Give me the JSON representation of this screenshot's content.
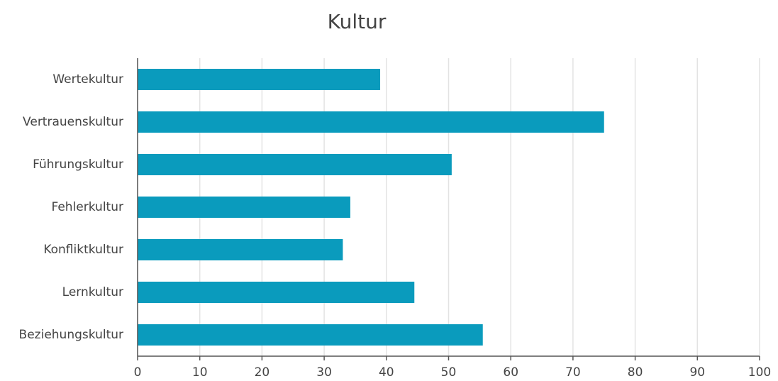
{
  "chart_data": {
    "type": "bar",
    "orientation": "horizontal",
    "title": "Kultur",
    "categories": [
      "Wertekultur",
      "Vertrauenskultur",
      "Führungskultur",
      "Fehlerkultur",
      "Konfliktkultur",
      "Lernkultur",
      "Beziehungskultur"
    ],
    "values": [
      39,
      75,
      50.5,
      34.2,
      33,
      44.5,
      55.5
    ],
    "color": "#0a9bbd",
    "xlim": [
      0,
      100
    ],
    "xticks": [
      0,
      10,
      20,
      30,
      40,
      50,
      60,
      70,
      80,
      90,
      100
    ],
    "grid": true
  }
}
